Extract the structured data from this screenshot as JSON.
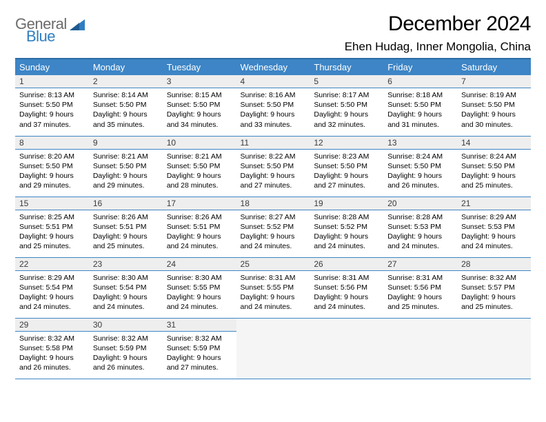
{
  "logo": {
    "word1": "General",
    "word2": "Blue",
    "color_gray": "#6b6b6b",
    "color_blue": "#2f7ec0",
    "tri_color": "#2f7ec0"
  },
  "title": "December 2024",
  "location": "Ehen Hudag, Inner Mongolia, China",
  "colors": {
    "header_bg": "#3d85c6",
    "header_border": "#2b6aa3",
    "row_border": "#3d85c6",
    "daynum_bg": "#eeeeee",
    "empty_bg": "#f5f5f5"
  },
  "weekdays": [
    "Sunday",
    "Monday",
    "Tuesday",
    "Wednesday",
    "Thursday",
    "Friday",
    "Saturday"
  ],
  "weeks": [
    [
      {
        "n": "1",
        "sr": "8:13 AM",
        "ss": "5:50 PM",
        "dl": "9 hours and 37 minutes."
      },
      {
        "n": "2",
        "sr": "8:14 AM",
        "ss": "5:50 PM",
        "dl": "9 hours and 35 minutes."
      },
      {
        "n": "3",
        "sr": "8:15 AM",
        "ss": "5:50 PM",
        "dl": "9 hours and 34 minutes."
      },
      {
        "n": "4",
        "sr": "8:16 AM",
        "ss": "5:50 PM",
        "dl": "9 hours and 33 minutes."
      },
      {
        "n": "5",
        "sr": "8:17 AM",
        "ss": "5:50 PM",
        "dl": "9 hours and 32 minutes."
      },
      {
        "n": "6",
        "sr": "8:18 AM",
        "ss": "5:50 PM",
        "dl": "9 hours and 31 minutes."
      },
      {
        "n": "7",
        "sr": "8:19 AM",
        "ss": "5:50 PM",
        "dl": "9 hours and 30 minutes."
      }
    ],
    [
      {
        "n": "8",
        "sr": "8:20 AM",
        "ss": "5:50 PM",
        "dl": "9 hours and 29 minutes."
      },
      {
        "n": "9",
        "sr": "8:21 AM",
        "ss": "5:50 PM",
        "dl": "9 hours and 29 minutes."
      },
      {
        "n": "10",
        "sr": "8:21 AM",
        "ss": "5:50 PM",
        "dl": "9 hours and 28 minutes."
      },
      {
        "n": "11",
        "sr": "8:22 AM",
        "ss": "5:50 PM",
        "dl": "9 hours and 27 minutes."
      },
      {
        "n": "12",
        "sr": "8:23 AM",
        "ss": "5:50 PM",
        "dl": "9 hours and 27 minutes."
      },
      {
        "n": "13",
        "sr": "8:24 AM",
        "ss": "5:50 PM",
        "dl": "9 hours and 26 minutes."
      },
      {
        "n": "14",
        "sr": "8:24 AM",
        "ss": "5:50 PM",
        "dl": "9 hours and 25 minutes."
      }
    ],
    [
      {
        "n": "15",
        "sr": "8:25 AM",
        "ss": "5:51 PM",
        "dl": "9 hours and 25 minutes."
      },
      {
        "n": "16",
        "sr": "8:26 AM",
        "ss": "5:51 PM",
        "dl": "9 hours and 25 minutes."
      },
      {
        "n": "17",
        "sr": "8:26 AM",
        "ss": "5:51 PM",
        "dl": "9 hours and 24 minutes."
      },
      {
        "n": "18",
        "sr": "8:27 AM",
        "ss": "5:52 PM",
        "dl": "9 hours and 24 minutes."
      },
      {
        "n": "19",
        "sr": "8:28 AM",
        "ss": "5:52 PM",
        "dl": "9 hours and 24 minutes."
      },
      {
        "n": "20",
        "sr": "8:28 AM",
        "ss": "5:53 PM",
        "dl": "9 hours and 24 minutes."
      },
      {
        "n": "21",
        "sr": "8:29 AM",
        "ss": "5:53 PM",
        "dl": "9 hours and 24 minutes."
      }
    ],
    [
      {
        "n": "22",
        "sr": "8:29 AM",
        "ss": "5:54 PM",
        "dl": "9 hours and 24 minutes."
      },
      {
        "n": "23",
        "sr": "8:30 AM",
        "ss": "5:54 PM",
        "dl": "9 hours and 24 minutes."
      },
      {
        "n": "24",
        "sr": "8:30 AM",
        "ss": "5:55 PM",
        "dl": "9 hours and 24 minutes."
      },
      {
        "n": "25",
        "sr": "8:31 AM",
        "ss": "5:55 PM",
        "dl": "9 hours and 24 minutes."
      },
      {
        "n": "26",
        "sr": "8:31 AM",
        "ss": "5:56 PM",
        "dl": "9 hours and 24 minutes."
      },
      {
        "n": "27",
        "sr": "8:31 AM",
        "ss": "5:56 PM",
        "dl": "9 hours and 25 minutes."
      },
      {
        "n": "28",
        "sr": "8:32 AM",
        "ss": "5:57 PM",
        "dl": "9 hours and 25 minutes."
      }
    ],
    [
      {
        "n": "29",
        "sr": "8:32 AM",
        "ss": "5:58 PM",
        "dl": "9 hours and 26 minutes."
      },
      {
        "n": "30",
        "sr": "8:32 AM",
        "ss": "5:59 PM",
        "dl": "9 hours and 26 minutes."
      },
      {
        "n": "31",
        "sr": "8:32 AM",
        "ss": "5:59 PM",
        "dl": "9 hours and 27 minutes."
      },
      null,
      null,
      null,
      null
    ]
  ],
  "labels": {
    "sunrise": "Sunrise:",
    "sunset": "Sunset:",
    "daylight": "Daylight:"
  }
}
